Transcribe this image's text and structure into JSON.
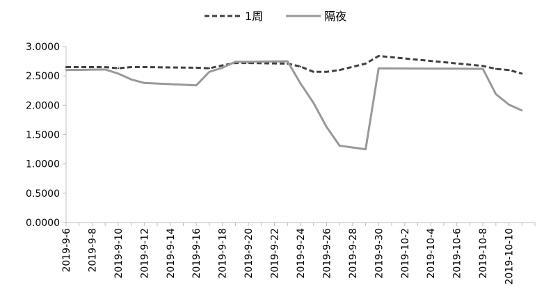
{
  "chart_data": {
    "type": "line",
    "title": "",
    "xlabel": "",
    "ylabel": "",
    "ylim": [
      0,
      3
    ],
    "y_ticks": [
      "0.0000",
      "0.5000",
      "1.0000",
      "1.5000",
      "2.0000",
      "2.5000",
      "3.0000"
    ],
    "x_tick_labels": [
      "2019-9-6",
      "2019-9-8",
      "2019-9-10",
      "2019-9-12",
      "2019-9-14",
      "2019-9-16",
      "2019-9-18",
      "2019-9-20",
      "2019-9-22",
      "2019-9-24",
      "2019-9-26",
      "2019-9-28",
      "2019-9-30",
      "2019-10-2",
      "2019-10-4",
      "2019-10-6",
      "2019-10-8",
      "2019-10-10"
    ],
    "legend_position": "top-center",
    "grid": false,
    "x": [
      "2019-09-06",
      "2019-09-09",
      "2019-09-10",
      "2019-09-11",
      "2019-09-12",
      "2019-09-16",
      "2019-09-17",
      "2019-09-18",
      "2019-09-19",
      "2019-09-20",
      "2019-09-23",
      "2019-09-24",
      "2019-09-25",
      "2019-09-26",
      "2019-09-27",
      "2019-09-29",
      "2019-09-30",
      "2019-10-08",
      "2019-10-09",
      "2019-10-10",
      "2019-10-11"
    ],
    "series": [
      {
        "name": "1周",
        "style": "dashed",
        "color": "#404040",
        "values": [
          2.65,
          2.65,
          2.63,
          2.65,
          2.65,
          2.64,
          2.63,
          2.68,
          2.72,
          2.72,
          2.71,
          2.66,
          2.57,
          2.57,
          2.6,
          2.71,
          2.84,
          2.67,
          2.62,
          2.6,
          2.54
        ]
      },
      {
        "name": "隔夜",
        "style": "solid",
        "color": "#999999",
        "values": [
          2.6,
          2.61,
          2.54,
          2.44,
          2.38,
          2.34,
          2.57,
          2.64,
          2.74,
          2.74,
          2.75,
          2.37,
          2.04,
          1.63,
          1.31,
          1.25,
          2.63,
          2.62,
          2.19,
          2.01,
          1.91
        ]
      }
    ]
  }
}
